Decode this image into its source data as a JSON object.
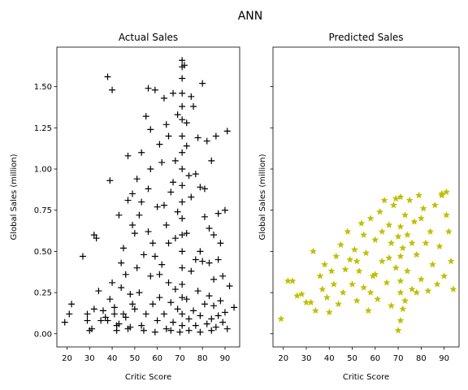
{
  "figure": {
    "suptitle": "ANN"
  },
  "chart_data": [
    {
      "type": "scatter",
      "title": "Actual Sales",
      "xlabel": "Critic Score",
      "ylabel": "Global Sales (million)",
      "xlim": [
        15.5,
        96.5
      ],
      "ylim": [
        -0.08,
        1.74
      ],
      "xticks": [
        20,
        30,
        40,
        50,
        60,
        70,
        80,
        90
      ],
      "yticks": [
        0.0,
        0.25,
        0.5,
        0.75,
        1.0,
        1.25,
        1.5
      ],
      "ytick_labels": [
        "0.00",
        "0.25",
        "0.50",
        "0.75",
        "1.00",
        "1.25",
        "1.50"
      ],
      "grid": false,
      "series": [
        {
          "marker": "plus",
          "color": "#000000",
          "points": [
            [
              19,
              0.07
            ],
            [
              21,
              0.12
            ],
            [
              22,
              0.18
            ],
            [
              27,
              0.47
            ],
            [
              29,
              0.12
            ],
            [
              29,
              0.08
            ],
            [
              30,
              0.02
            ],
            [
              31,
              0.03
            ],
            [
              32,
              0.15
            ],
            [
              32,
              0.6
            ],
            [
              33,
              0.58
            ],
            [
              34,
              0.26
            ],
            [
              35,
              0.08
            ],
            [
              38,
              1.56
            ],
            [
              39,
              0.93
            ],
            [
              40,
              1.48
            ],
            [
              40,
              0.31
            ],
            [
              41,
              0.16
            ],
            [
              42,
              0.05
            ],
            [
              43,
              0.72
            ],
            [
              44,
              0.43
            ],
            [
              45,
              0.12
            ],
            [
              46,
              0.36
            ],
            [
              47,
              0.81
            ],
            [
              47,
              1.08
            ],
            [
              48,
              0.24
            ],
            [
              49,
              0.18
            ],
            [
              50,
              0.61
            ],
            [
              51,
              0.94
            ],
            [
              52,
              0.72
            ],
            [
              53,
              1.1
            ],
            [
              54,
              0.48
            ],
            [
              55,
              1.32
            ],
            [
              56,
              1.49
            ],
            [
              56,
              0.88
            ],
            [
              57,
              1.24
            ],
            [
              58,
              0.55
            ],
            [
              59,
              1.48
            ],
            [
              60,
              0.77
            ],
            [
              61,
              0.36
            ],
            [
              62,
              1.04
            ],
            [
              63,
              1.43
            ],
            [
              64,
              0.66
            ],
            [
              65,
              1.2
            ],
            [
              66,
              0.86
            ],
            [
              67,
              1.46
            ],
            [
              68,
              0.58
            ],
            [
              69,
              1.33
            ],
            [
              71,
              1.66
            ],
            [
              71,
              1.62
            ],
            [
              71,
              1.55
            ],
            [
              71,
              1.46
            ],
            [
              71,
              1.38
            ],
            [
              71,
              1.3
            ],
            [
              71,
              1.2
            ],
            [
              71,
              1.1
            ],
            [
              71,
              1.0
            ],
            [
              71,
              0.9
            ],
            [
              71,
              0.8
            ],
            [
              71,
              0.7
            ],
            [
              71,
              0.6
            ],
            [
              71,
              0.5
            ],
            [
              71,
              0.4
            ],
            [
              71,
              0.3
            ],
            [
              71,
              0.22
            ],
            [
              71,
              0.12
            ],
            [
              71,
              0.05
            ],
            [
              72,
              1.63
            ],
            [
              73,
              1.14
            ],
            [
              74,
              0.96
            ],
            [
              75,
              1.44
            ],
            [
              76,
              1.38
            ],
            [
              77,
              0.45
            ],
            [
              78,
              1.19
            ],
            [
              79,
              0.89
            ],
            [
              80,
              1.52
            ],
            [
              81,
              0.71
            ],
            [
              82,
              1.17
            ],
            [
              83,
              0.43
            ],
            [
              84,
              1.05
            ],
            [
              85,
              0.33
            ],
            [
              86,
              1.2
            ],
            [
              87,
              0.73
            ],
            [
              88,
              0.55
            ],
            [
              89,
              0.35
            ],
            [
              90,
              0.75
            ],
            [
              91,
              1.23
            ],
            [
              92,
              0.29
            ],
            [
              94,
              0.16
            ],
            [
              36,
              0.14
            ],
            [
              37,
              0.1
            ],
            [
              38,
              0.08
            ],
            [
              39,
              0.21
            ],
            [
              41,
              0.12
            ],
            [
              43,
              0.06
            ],
            [
              44,
              0.28
            ],
            [
              46,
              0.1
            ],
            [
              48,
              0.04
            ],
            [
              50,
              0.15
            ],
            [
              52,
              0.25
            ],
            [
              53,
              0.05
            ],
            [
              55,
              0.12
            ],
            [
              57,
              0.35
            ],
            [
              58,
              0.18
            ],
            [
              60,
              0.08
            ],
            [
              61,
              0.22
            ],
            [
              62,
              0.42
            ],
            [
              63,
              0.12
            ],
            [
              64,
              0.03
            ],
            [
              65,
              0.31
            ],
            [
              66,
              0.19
            ],
            [
              67,
              0.07
            ],
            [
              68,
              0.27
            ],
            [
              69,
              0.15
            ],
            [
              73,
              0.21
            ],
            [
              74,
              0.09
            ],
            [
              75,
              0.38
            ],
            [
              76,
              0.14
            ],
            [
              77,
              0.05
            ],
            [
              78,
              0.26
            ],
            [
              79,
              0.11
            ],
            [
              80,
              0.44
            ],
            [
              81,
              0.18
            ],
            [
              82,
              0.06
            ],
            [
              83,
              0.23
            ],
            [
              84,
              0.09
            ],
            [
              85,
              0.17
            ],
            [
              86,
              0.04
            ],
            [
              87,
              0.11
            ],
            [
              88,
              0.2
            ],
            [
              89,
              0.07
            ],
            [
              90,
              0.13
            ],
            [
              91,
              0.03
            ],
            [
              42,
              0.02
            ],
            [
              47,
              0.03
            ],
            [
              54,
              0.02
            ],
            [
              59,
              0.01
            ],
            [
              66,
              0.02
            ],
            [
              70,
              0.01
            ],
            [
              74,
              0.02
            ],
            [
              79,
              0.01
            ],
            [
              84,
              0.02
            ],
            [
              45,
              0.52
            ],
            [
              49,
              0.66
            ],
            [
              51,
              0.4
            ],
            [
              56,
              0.62
            ],
            [
              59,
              0.47
            ],
            [
              63,
              0.78
            ],
            [
              65,
              0.55
            ],
            [
              67,
              0.92
            ],
            [
              69,
              0.74
            ],
            [
              73,
              0.61
            ],
            [
              75,
              0.83
            ],
            [
              77,
              0.97
            ],
            [
              79,
              0.5
            ],
            [
              81,
              0.88
            ],
            [
              83,
              0.64
            ],
            [
              85,
              0.6
            ],
            [
              87,
              0.45
            ],
            [
              49,
              0.85
            ],
            [
              53,
              0.8
            ],
            [
              57,
              1.0
            ],
            [
              61,
              1.15
            ],
            [
              64,
              1.27
            ],
            [
              68,
              1.05
            ],
            [
              73,
              1.28
            ]
          ]
        }
      ]
    },
    {
      "type": "scatter",
      "title": "Predicted Sales",
      "xlabel": "Critic Score",
      "ylabel": "Global Sales (million)",
      "xlim": [
        15.5,
        96.5
      ],
      "ylim": [
        -0.08,
        1.74
      ],
      "xticks": [
        20,
        30,
        40,
        50,
        60,
        70,
        80,
        90
      ],
      "yticks": [
        0.0,
        0.25,
        0.5,
        0.75,
        1.0,
        1.25,
        1.5
      ],
      "ytick_labels_visible": false,
      "grid": false,
      "series": [
        {
          "marker": "star",
          "color": "#bfbf00",
          "points": [
            [
              19,
              0.09
            ],
            [
              22,
              0.32
            ],
            [
              24,
              0.32
            ],
            [
              26,
              0.23
            ],
            [
              28,
              0.24
            ],
            [
              30,
              0.19
            ],
            [
              32,
              0.19
            ],
            [
              33,
              0.5
            ],
            [
              34,
              0.14
            ],
            [
              36,
              0.35
            ],
            [
              37,
              0.27
            ],
            [
              38,
              0.42
            ],
            [
              39,
              0.22
            ],
            [
              40,
              0.13
            ],
            [
              41,
              0.38
            ],
            [
              42,
              0.3
            ],
            [
              43,
              0.47
            ],
            [
              44,
              0.18
            ],
            [
              45,
              0.54
            ],
            [
              46,
              0.25
            ],
            [
              47,
              0.39
            ],
            [
              48,
              0.62
            ],
            [
              49,
              0.45
            ],
            [
              50,
              0.3
            ],
            [
              51,
              0.51
            ],
            [
              52,
              0.2
            ],
            [
              53,
              0.38
            ],
            [
              54,
              0.67
            ],
            [
              55,
              0.28
            ],
            [
              56,
              0.49
            ],
            [
              57,
              0.14
            ],
            [
              58,
              0.7
            ],
            [
              59,
              0.35
            ],
            [
              60,
              0.57
            ],
            [
              61,
              0.21
            ],
            [
              62,
              0.74
            ],
            [
              63,
              0.44
            ],
            [
              64,
              0.81
            ],
            [
              65,
              0.31
            ],
            [
              66,
              0.66
            ],
            [
              67,
              0.17
            ],
            [
              68,
              0.78
            ],
            [
              69,
              0.4
            ],
            [
              70,
              0.59
            ],
            [
              70,
              0.02
            ],
            [
              71,
              0.25
            ],
            [
              71,
              0.83
            ],
            [
              71,
              0.47
            ],
            [
              71,
              0.08
            ],
            [
              71,
              0.32
            ],
            [
              71,
              0.65
            ],
            [
              72,
              0.52
            ],
            [
              72,
              0.15
            ],
            [
              73,
              0.72
            ],
            [
              74,
              0.38
            ],
            [
              75,
              0.81
            ],
            [
              76,
              0.27
            ],
            [
              77,
              0.68
            ],
            [
              78,
              0.48
            ],
            [
              79,
              0.84
            ],
            [
              80,
              0.33
            ],
            [
              81,
              0.76
            ],
            [
              82,
              0.55
            ],
            [
              83,
              0.26
            ],
            [
              84,
              0.62
            ],
            [
              85,
              0.42
            ],
            [
              86,
              0.78
            ],
            [
              87,
              0.3
            ],
            [
              88,
              0.53
            ],
            [
              89,
              0.84
            ],
            [
              90,
              0.35
            ],
            [
              91,
              0.72
            ],
            [
              92,
              0.62
            ],
            [
              93,
              0.44
            ],
            [
              94,
              0.27
            ],
            [
              91,
              0.86
            ],
            [
              89,
              0.85
            ],
            [
              60,
              0.36
            ],
            [
              66,
              0.46
            ],
            [
              76,
              0.55
            ],
            [
              58,
              0.25
            ],
            [
              63,
              0.62
            ],
            [
              69,
              0.82
            ],
            [
              74,
              0.6
            ],
            [
              52,
              0.44
            ],
            [
              80,
              0.7
            ],
            [
              55,
              0.6
            ],
            [
              67,
              0.55
            ],
            [
              73,
              0.2
            ],
            [
              78,
              0.25
            ]
          ]
        }
      ]
    }
  ]
}
